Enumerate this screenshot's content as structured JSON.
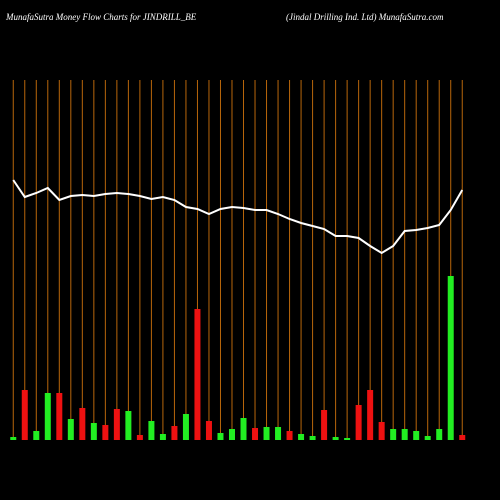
{
  "chart_data": {
    "type": "bar",
    "title": "MunafaSutra  Money Flow  Charts for JINDRILL_BE",
    "subtitle": "(Jindal Drilling Ind. Ltd) MunafaSutra.com",
    "categories": [
      null,
      null,
      null,
      null,
      null,
      null,
      null,
      null,
      null,
      null,
      null,
      null,
      null,
      null,
      null,
      null,
      null,
      null,
      null,
      null,
      null,
      null,
      null,
      null,
      null,
      null,
      null,
      null,
      null,
      null,
      null,
      null,
      null,
      null,
      null,
      null,
      null,
      null,
      null,
      null
    ],
    "values": [
      3,
      50,
      9,
      47,
      47,
      21,
      32,
      17,
      15,
      31,
      29,
      5,
      19,
      6,
      14,
      26,
      131,
      19,
      7,
      11,
      22,
      12,
      13,
      13,
      9,
      6,
      4,
      30,
      3,
      2,
      35,
      50,
      18,
      11,
      11,
      9,
      4,
      11,
      164,
      5
    ],
    "colors": [
      "#22ee22",
      "#ee1111",
      "#22ee22",
      "#22ee22",
      "#ee1111",
      "#22ee22",
      "#ee1111",
      "#22ee22",
      "#ee1111",
      "#ee1111",
      "#22ee22",
      "#ee1111",
      "#22ee22",
      "#22ee22",
      "#ee1111",
      "#22ee22",
      "#ee1111",
      "#ee1111",
      "#22ee22",
      "#22ee22",
      "#22ee22",
      "#ee1111",
      "#22ee22",
      "#22ee22",
      "#ee1111",
      "#22ee22",
      "#22ee22",
      "#ee1111",
      "#22ee22",
      "#22ee22",
      "#ee1111",
      "#ee1111",
      "#ee1111",
      "#22ee22",
      "#22ee22",
      "#22ee22",
      "#22ee22",
      "#22ee22",
      "#22ee22",
      "#ee1111"
    ],
    "line_values": [
      260,
      243,
      247,
      252,
      240,
      244,
      245,
      244,
      246,
      247,
      246,
      244,
      241,
      243,
      240,
      233,
      231,
      226,
      231,
      233,
      232,
      230,
      230,
      226,
      221,
      217,
      214,
      211,
      204,
      204,
      202,
      194,
      187,
      194,
      209,
      210,
      212,
      215,
      230,
      250
    ],
    "line_color": "#ffffff",
    "grid_color": "#b8660b",
    "ylim": [
      0,
      360
    ]
  }
}
